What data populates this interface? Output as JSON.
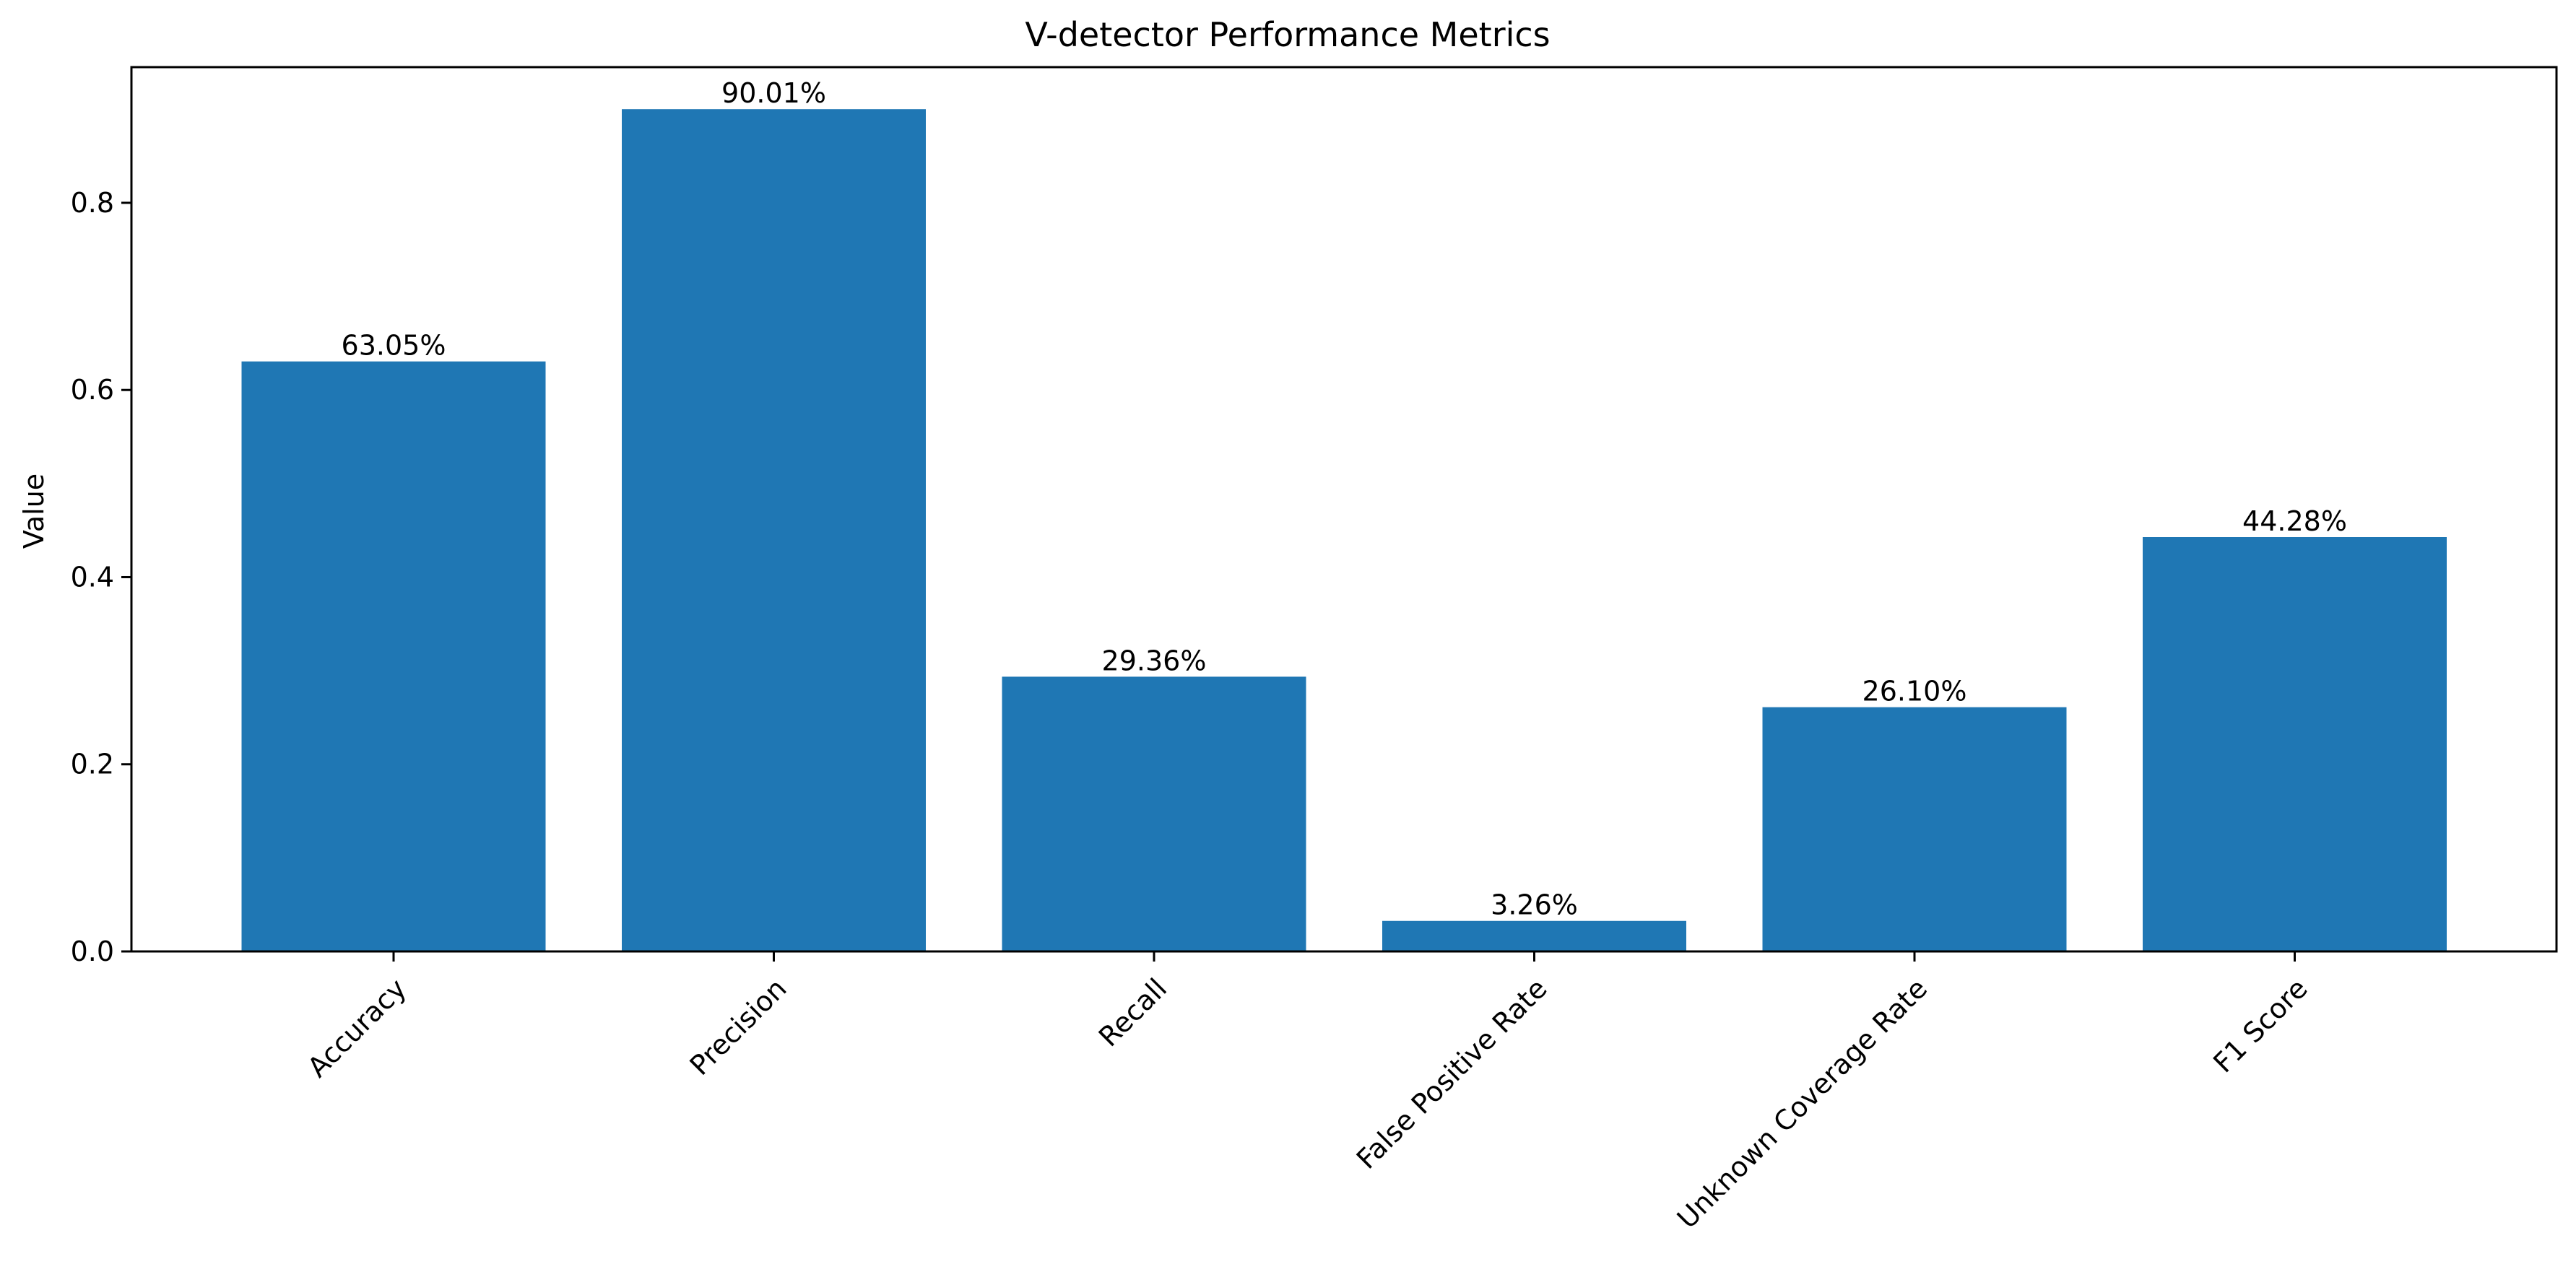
{
  "chart_data": {
    "type": "bar",
    "title": "V-detector Performance Metrics",
    "xlabel": "",
    "ylabel": "Value",
    "categories": [
      "Accuracy",
      "Precision",
      "Recall",
      "False Positive Rate",
      "Unknown Coverage Rate",
      "F1 Score"
    ],
    "values": [
      0.6305,
      0.9001,
      0.2936,
      0.0326,
      0.261,
      0.4428
    ],
    "data_labels": [
      "63.05%",
      "90.01%",
      "29.36%",
      "3.26%",
      "26.10%",
      "44.28%"
    ],
    "ylim": [
      0,
      0.945
    ],
    "yticks": [
      0.0,
      0.2,
      0.4,
      0.6,
      0.8
    ],
    "ytick_labels": [
      "0.0",
      "0.2",
      "0.4",
      "0.6",
      "0.8"
    ],
    "bar_color": "#1f77b4",
    "grid": false,
    "legend": "none"
  }
}
